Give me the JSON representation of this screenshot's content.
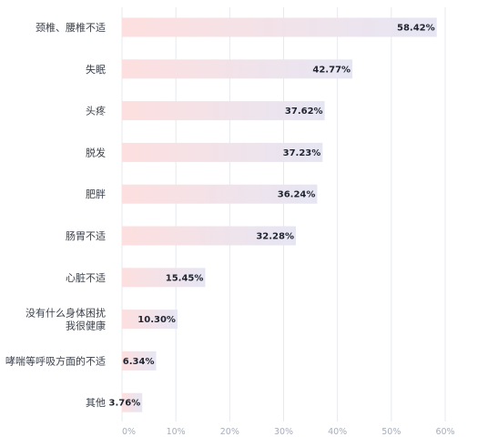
{
  "chart_data": {
    "type": "bar",
    "orientation": "horizontal",
    "categories": [
      [
        "颈椎、腰椎不适"
      ],
      [
        "失眠"
      ],
      [
        "头疼"
      ],
      [
        "脱发"
      ],
      [
        "肥胖"
      ],
      [
        "肠胃不适"
      ],
      [
        "心脏不适"
      ],
      [
        "没有什么身体困扰",
        "我很健康"
      ],
      [
        "哮喘等呼吸方面的不适"
      ],
      [
        "其他"
      ]
    ],
    "values": [
      58.42,
      42.77,
      37.62,
      37.23,
      36.24,
      32.28,
      15.45,
      10.3,
      6.34,
      3.76
    ],
    "value_labels": [
      "58.42%",
      "42.77%",
      "37.62%",
      "37.23%",
      "36.24%",
      "32.28%",
      "15.45%",
      "10.30%",
      "6.34%",
      "3.76%"
    ],
    "xlim": [
      0,
      60
    ],
    "x_ticks": [
      0,
      10,
      20,
      30,
      40,
      50,
      60
    ],
    "x_tick_labels": [
      "0%",
      "10%",
      "20%",
      "30%",
      "40%",
      "50%",
      "60%"
    ],
    "grid": true,
    "bar_gradient": [
      "#fddfdf",
      "#e6e6f3"
    ]
  }
}
